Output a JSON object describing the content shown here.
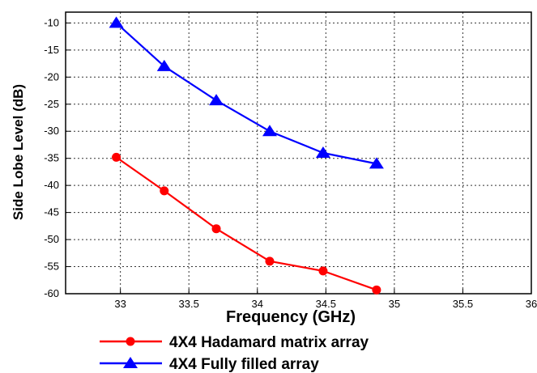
{
  "chart_data": {
    "type": "line",
    "xlabel": "Frequency (GHz)",
    "ylabel": "Side Lobe Level (dB)",
    "xlim": [
      32.6,
      36
    ],
    "ylim": [
      -60,
      -8
    ],
    "x_ticks": [
      33,
      33.5,
      34,
      34.5,
      35,
      35.5,
      36
    ],
    "x_tick_labels": [
      "33",
      "33.5",
      "34",
      "34.5",
      "35",
      "35.5",
      "36"
    ],
    "y_ticks": [
      -10,
      -15,
      -20,
      -25,
      -30,
      -35,
      -40,
      -45,
      -50,
      -55,
      -60
    ],
    "y_tick_labels": [
      "-10",
      "-15",
      "-20",
      "-25",
      "-30",
      "-35",
      "-40",
      "-45",
      "-50",
      "-55",
      "-60"
    ],
    "grid": true,
    "legend_position": "bottom",
    "series": [
      {
        "name": "4X4 Hadamard matrix array",
        "color": "#ff0000",
        "marker": "circle",
        "x": [
          32.97,
          33.32,
          33.7,
          34.09,
          34.48,
          34.87
        ],
        "y": [
          -34.8,
          -41.0,
          -48.0,
          -54.0,
          -55.8,
          -59.3
        ]
      },
      {
        "name": "4X4 Fully filled array",
        "color": "#0000ff",
        "marker": "triangle",
        "x": [
          32.97,
          33.32,
          33.7,
          34.09,
          34.48,
          34.87
        ],
        "y": [
          -10.0,
          -18.0,
          -24.3,
          -30.0,
          -34.0,
          -36.0
        ]
      }
    ]
  }
}
